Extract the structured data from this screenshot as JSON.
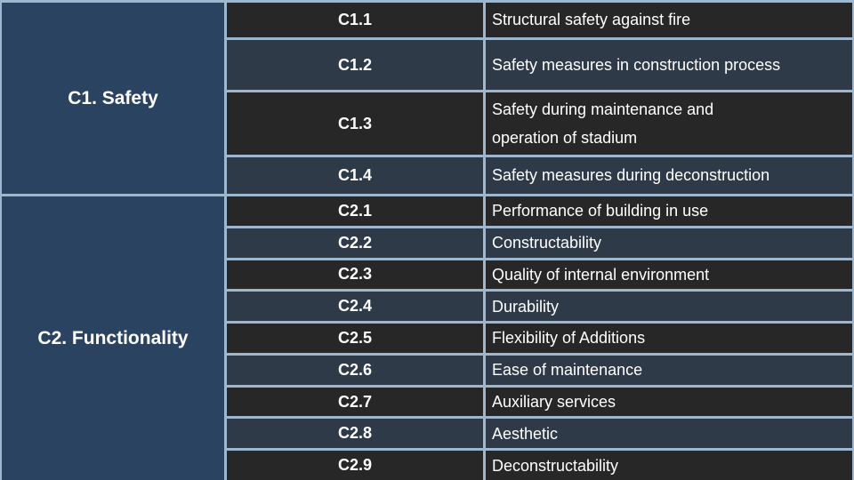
{
  "colors": {
    "navy": "#2a4361",
    "charcoal": "#272727",
    "slate": "#2e3a47",
    "border": "#9fb6cf",
    "text": "#ffffff"
  },
  "table": {
    "groups": [
      {
        "label": "C1. Safety",
        "rows": [
          {
            "code": "C1.1",
            "description": "Structural safety against fire"
          },
          {
            "code": "C1.2",
            "description": "Safety measures in construction process"
          },
          {
            "code": "C1.3",
            "description": "Safety during maintenance and\noperation of stadium"
          },
          {
            "code": "C1.4",
            "description": "Safety measures during deconstruction"
          }
        ]
      },
      {
        "label": "C2. Functionality",
        "rows": [
          {
            "code": "C2.1",
            "description": "Performance of building in use"
          },
          {
            "code": "C2.2",
            "description": "Constructability"
          },
          {
            "code": "C2.3",
            "description": "Quality of internal environment"
          },
          {
            "code": "C2.4",
            "description": "Durability"
          },
          {
            "code": "C2.5",
            "description": "Flexibility of Additions"
          },
          {
            "code": "C2.6",
            "description": "Ease of maintenance"
          },
          {
            "code": "C2.7",
            "description": "Auxiliary services"
          },
          {
            "code": "C2.8",
            "description": "Aesthetic"
          },
          {
            "code": "C2.9",
            "description": "Deconstructability"
          }
        ]
      }
    ]
  }
}
